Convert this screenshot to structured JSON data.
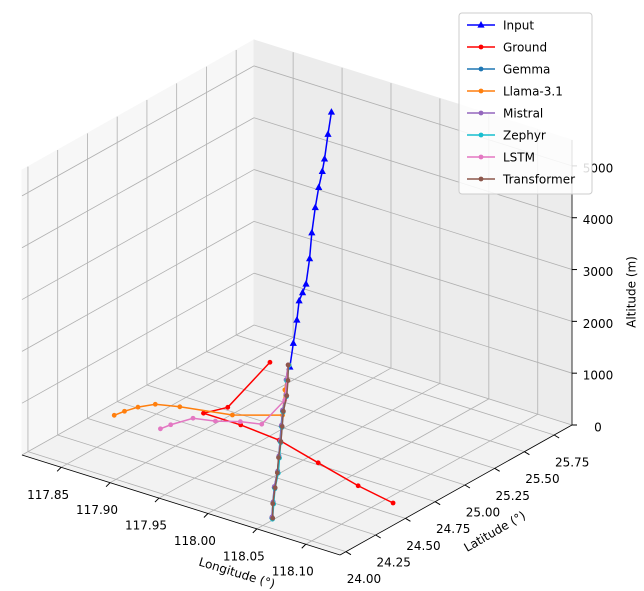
{
  "chart_data": {
    "type": "line3d",
    "xlabel": "Longitude (°)",
    "ylabel": "Latitude (°)",
    "zlabel": "Altitude (m)",
    "xlim": [
      117.81,
      118.135
    ],
    "ylim": [
      23.95,
      25.9
    ],
    "zlim": [
      0,
      5500
    ],
    "xticks": [
      117.85,
      {
        "value": 117.9,
        "label": "117.90"
      },
      117.95,
      {
        "value": 118.0,
        "label": "118.00"
      },
      118.05,
      {
        "value": 118.1,
        "label": "118.10"
      }
    ],
    "yticks": [
      {
        "value": 24.0,
        "label": "24.00"
      },
      24.25,
      {
        "value": 24.5,
        "label": "24.50"
      },
      24.75,
      {
        "value": 25.0,
        "label": "25.00"
      },
      25.25,
      {
        "value": 25.5,
        "label": "25.50"
      },
      25.75
    ],
    "zticks": [
      0,
      1000,
      2000,
      3000,
      4000,
      5000
    ],
    "grid": true,
    "legend": "upper right",
    "series": [
      {
        "name": "Input",
        "color": "#0000ff",
        "marker": "triangle",
        "x": [
          117.937,
          117.937,
          117.937,
          117.936,
          117.936,
          117.936,
          117.936,
          117.935,
          117.935,
          117.935,
          117.935,
          117.934,
          117.934,
          117.934
        ],
        "y": [
          25.157,
          25.186,
          25.216,
          25.243,
          25.272,
          25.301,
          25.331,
          25.358,
          25.387,
          25.416,
          25.446,
          25.473,
          25.502,
          25.531
        ],
        "z": [
          900,
          1320,
          1730,
          2060,
          2180,
          2310,
          2760,
          3220,
          3670,
          4020,
          4290,
          4490,
          4930,
          5320
        ]
      },
      {
        "name": "Ground",
        "color": "#ff0000",
        "marker": "circle",
        "x": [
          117.864,
          117.889,
          117.88,
          117.918,
          117.961,
          118.013,
          118.066,
          118.109
        ],
        "y": [
          25.59,
          25.03,
          24.9,
          24.9,
          24.87,
          24.77,
          24.67,
          24.61
        ],
        "z": [
          0,
          0,
          0,
          0,
          0,
          0,
          0,
          0
        ]
      },
      {
        "name": "Gemma",
        "color": "#1f77b4",
        "marker": "circle",
        "x": [
          117.879,
          117.896,
          117.913,
          117.929,
          117.946,
          117.963,
          117.98,
          117.997,
          118.013,
          118.03,
          118.047
        ],
        "y": [
          25.62,
          25.47,
          25.32,
          25.16,
          25.01,
          24.86,
          24.71,
          24.56,
          24.4,
          24.25,
          24.1
        ],
        "z": [
          0,
          0,
          0,
          0,
          0,
          0,
          0,
          0,
          0,
          0,
          0
        ]
      },
      {
        "name": "Llama-3.1",
        "color": "#ff7f0e",
        "marker": "circle",
        "x": [
          117.879,
          117.906,
          117.934,
          117.901,
          117.857,
          117.838,
          117.83,
          117.826,
          117.824
        ],
        "y": [
          25.62,
          25.37,
          25.12,
          24.97,
          24.89,
          24.84,
          24.76,
          24.68,
          24.61
        ],
        "z": [
          0,
          0,
          0,
          0,
          0,
          0,
          0,
          0,
          0
        ]
      },
      {
        "name": "Mistral",
        "color": "#9467bd",
        "marker": "circle",
        "x": [
          117.879,
          117.895,
          117.912,
          117.928,
          117.945,
          117.962,
          117.979,
          117.996,
          118.012,
          118.029,
          118.046
        ],
        "y": [
          25.62,
          25.47,
          25.33,
          25.17,
          25.02,
          24.87,
          24.72,
          24.57,
          24.41,
          24.26,
          24.11
        ],
        "z": [
          0,
          0,
          0,
          0,
          0,
          0,
          0,
          0,
          0,
          0,
          0
        ]
      },
      {
        "name": "Zephyr",
        "color": "#17becf",
        "marker": "circle",
        "x": [
          117.88,
          117.897,
          117.915,
          117.931,
          117.948,
          117.965,
          117.982,
          117.999,
          118.015,
          118.032,
          118.049
        ],
        "y": [
          25.62,
          25.46,
          25.31,
          25.15,
          25.0,
          24.85,
          24.7,
          24.55,
          24.39,
          24.24,
          24.09
        ],
        "z": [
          0,
          0,
          0,
          0,
          0,
          0,
          0,
          0,
          0,
          0,
          0
        ]
      },
      {
        "name": "LSTM",
        "color": "#e377c2",
        "marker": "circle",
        "x": [
          117.879,
          117.918,
          117.931,
          117.914,
          117.897,
          117.879,
          117.872,
          117.87
        ],
        "y": [
          25.62,
          25.27,
          24.97,
          24.93,
          24.86,
          24.82,
          24.69,
          24.62
        ],
        "z": [
          0,
          0,
          0,
          0,
          0,
          0,
          0,
          0
        ]
      },
      {
        "name": "Transformer",
        "color": "#8c564b",
        "marker": "circle",
        "x": [
          117.879,
          117.897,
          117.914,
          117.93,
          117.947,
          117.964,
          117.981,
          117.998,
          118.014,
          118.031,
          118.048
        ],
        "y": [
          25.62,
          25.47,
          25.32,
          25.16,
          25.01,
          24.86,
          24.7,
          24.55,
          24.4,
          24.24,
          24.1
        ],
        "z": [
          0,
          0,
          0,
          0,
          0,
          0,
          0,
          0,
          0,
          0,
          0
        ]
      }
    ]
  }
}
